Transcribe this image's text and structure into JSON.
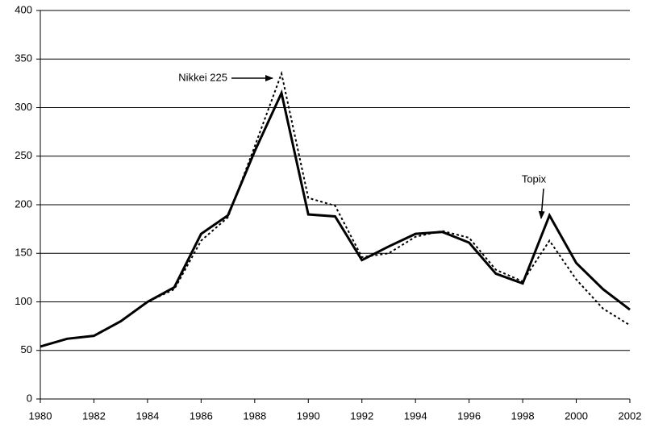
{
  "chart_data": {
    "type": "line",
    "x": [
      1980,
      1981,
      1982,
      1983,
      1984,
      1985,
      1986,
      1987,
      1988,
      1989,
      1990,
      1991,
      1992,
      1993,
      1994,
      1995,
      1996,
      1997,
      1998,
      1999,
      2000,
      2001,
      2002
    ],
    "series": [
      {
        "name": "Topix",
        "color": "#000000",
        "dash": "solid",
        "values": [
          54,
          62,
          65,
          80,
          100,
          115,
          170,
          189,
          255,
          315,
          190,
          188,
          143,
          157,
          170,
          172,
          161,
          129,
          119,
          189,
          140,
          113,
          92
        ]
      },
      {
        "name": "Nikkei 225",
        "color": "#000000",
        "dash": "dotted",
        "values": [
          54,
          62,
          65,
          80,
          100,
          113,
          163,
          187,
          260,
          335,
          207,
          199,
          146,
          150,
          167,
          173,
          166,
          133,
          121,
          163,
          123,
          93,
          76
        ]
      }
    ],
    "xlim": [
      1980,
      2002
    ],
    "xticks": [
      1980,
      1982,
      1984,
      1986,
      1988,
      1990,
      1992,
      1994,
      1996,
      1998,
      2000,
      2002
    ],
    "ylim": [
      0,
      400
    ],
    "yticks": [
      0,
      50,
      100,
      150,
      200,
      250,
      300,
      350,
      400
    ],
    "grid": true
  }
}
